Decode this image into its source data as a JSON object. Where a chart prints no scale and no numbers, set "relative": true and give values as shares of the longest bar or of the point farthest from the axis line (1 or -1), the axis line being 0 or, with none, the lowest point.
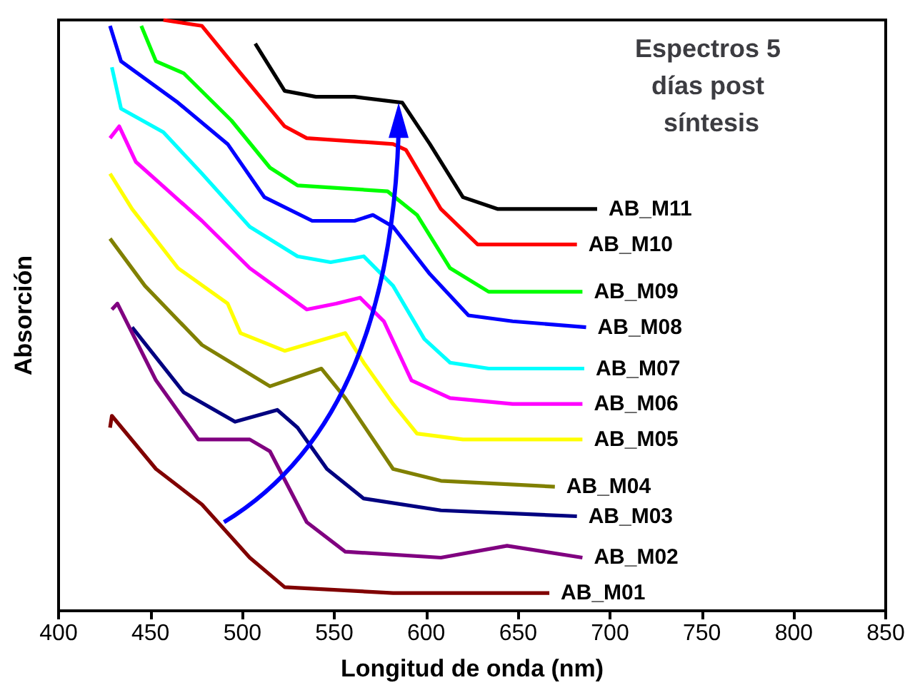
{
  "chart_data": {
    "type": "line",
    "title": "Espectros 5 días post síntesis",
    "xlabel": "Longitud de onda (nm)",
    "ylabel": "Absorción",
    "relative": true,
    "xlim": [
      400,
      850
    ],
    "xticks": [
      400,
      450,
      500,
      550,
      600,
      650,
      700,
      750,
      800,
      850
    ],
    "legend": false,
    "grid": false,
    "marker": "none",
    "line_style": "solid",
    "series": [
      {
        "name": "AB_M11",
        "color": "#000000",
        "x": [
          507,
          523,
          540,
          561,
          587,
          602,
          620,
          639,
          693
        ],
        "values": [
          0.96,
          0.88,
          0.87,
          0.87,
          0.86,
          0.79,
          0.7,
          0.68,
          0.68
        ]
      },
      {
        "name": "AB_M10",
        "color": "#ff0000",
        "x": [
          457,
          478,
          499,
          523,
          535,
          582,
          589,
          608,
          628,
          682
        ],
        "values": [
          1.0,
          0.99,
          0.91,
          0.82,
          0.8,
          0.79,
          0.78,
          0.68,
          0.62,
          0.62
        ]
      },
      {
        "name": "AB_M09",
        "color": "#00ff00",
        "x": [
          445,
          453,
          468,
          494,
          515,
          530,
          579,
          595,
          613,
          634,
          685
        ],
        "values": [
          0.99,
          0.93,
          0.91,
          0.83,
          0.75,
          0.72,
          0.71,
          0.67,
          0.58,
          0.54,
          0.54
        ]
      },
      {
        "name": "AB_M08",
        "color": "#0000ff",
        "x": [
          428,
          434,
          465,
          492,
          512,
          538,
          561,
          571,
          582,
          602,
          623,
          647,
          687
        ],
        "values": [
          0.99,
          0.93,
          0.86,
          0.79,
          0.7,
          0.66,
          0.66,
          0.67,
          0.65,
          0.57,
          0.5,
          0.49,
          0.48
        ]
      },
      {
        "name": "AB_M07",
        "color": "#00ffff",
        "x": [
          429,
          434,
          457,
          478,
          504,
          530,
          548,
          566,
          582,
          599,
          613,
          634,
          686
        ],
        "values": [
          0.92,
          0.85,
          0.81,
          0.74,
          0.65,
          0.6,
          0.59,
          0.6,
          0.55,
          0.46,
          0.42,
          0.41,
          0.41
        ]
      },
      {
        "name": "AB_M06",
        "color": "#ff00ff",
        "x": [
          428,
          433,
          442,
          478,
          504,
          535,
          551,
          564,
          577,
          592,
          613,
          647,
          685
        ],
        "values": [
          0.8,
          0.82,
          0.76,
          0.66,
          0.58,
          0.51,
          0.52,
          0.53,
          0.49,
          0.39,
          0.36,
          0.35,
          0.35
        ]
      },
      {
        "name": "AB_M05",
        "color": "#ffff00",
        "x": [
          428,
          440,
          465,
          492,
          499,
          523,
          556,
          566,
          582,
          595,
          620,
          685
        ],
        "values": [
          0.74,
          0.68,
          0.58,
          0.52,
          0.47,
          0.44,
          0.47,
          0.42,
          0.35,
          0.3,
          0.29,
          0.29
        ]
      },
      {
        "name": "AB_M04",
        "color": "#808000",
        "x": [
          428,
          447,
          478,
          515,
          543,
          556,
          582,
          608,
          670
        ],
        "values": [
          0.63,
          0.55,
          0.45,
          0.38,
          0.41,
          0.36,
          0.24,
          0.22,
          0.21
        ]
      },
      {
        "name": "AB_M03",
        "color": "#000080",
        "x": [
          440,
          468,
          496,
          519,
          530,
          546,
          566,
          608,
          682
        ],
        "values": [
          0.48,
          0.37,
          0.32,
          0.34,
          0.31,
          0.24,
          0.19,
          0.17,
          0.16
        ]
      },
      {
        "name": "AB_M02",
        "color": "#800080",
        "x": [
          429,
          432,
          453,
          476,
          504,
          515,
          535,
          556,
          608,
          644,
          685
        ],
        "values": [
          0.51,
          0.52,
          0.39,
          0.29,
          0.29,
          0.27,
          0.15,
          0.1,
          0.09,
          0.11,
          0.09
        ]
      },
      {
        "name": "AB_M01",
        "color": "#800000",
        "x": [
          428,
          429,
          453,
          478,
          504,
          523,
          582,
          647,
          667
        ],
        "values": [
          0.31,
          0.33,
          0.24,
          0.18,
          0.09,
          0.04,
          0.03,
          0.03,
          0.03
        ]
      }
    ]
  }
}
